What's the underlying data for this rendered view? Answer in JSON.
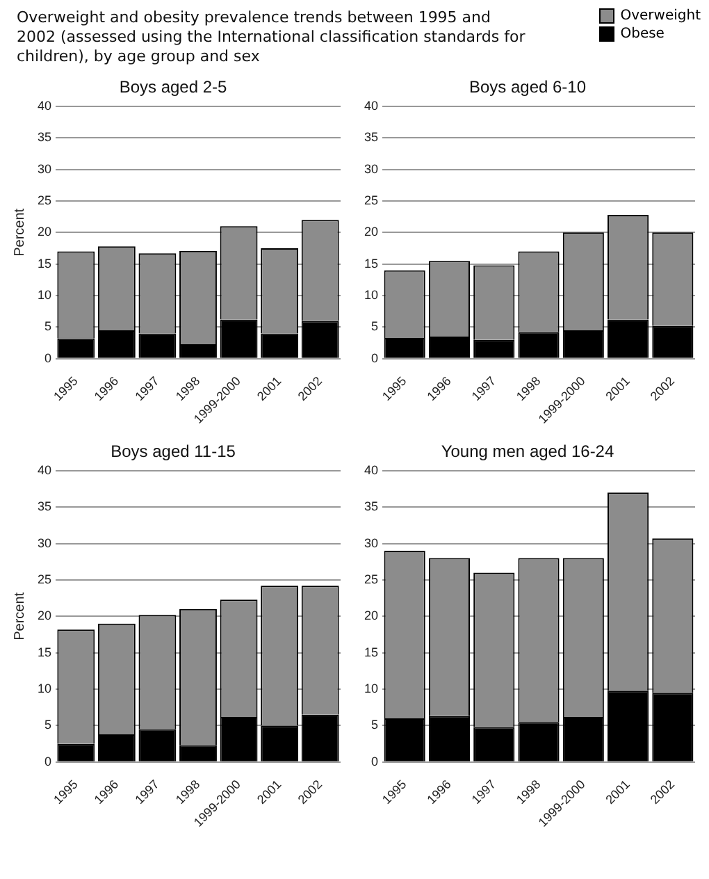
{
  "chart_data": [
    {
      "type": "bar",
      "title": "Boys aged 2-5",
      "ylabel": "Percent",
      "annotations": [
        "Overweight and obesity prevalence trends between 1995 and 2002 (assessed using the International classification standards for children), by age group and sex"
      ],
      "categories": [
        "1995",
        "1996",
        "1997",
        "1998",
        "1999-2000",
        "2001",
        "2002"
      ],
      "stacked": true,
      "legend": "top right",
      "grid": "y",
      "ylim": [
        0,
        40
      ],
      "yticks": [
        0,
        5,
        10,
        15,
        20,
        25,
        30,
        35,
        40
      ],
      "series": [
        {
          "name": "Obese",
          "color": "#000000",
          "values": [
            3.2,
            4.5,
            4,
            2.3,
            6.2,
            4,
            6
          ]
        },
        {
          "name": "Overweight",
          "color": "#8c8c8c",
          "values": [
            13.8,
            13.3,
            12.7,
            14.8,
            14.8,
            13.5,
            16
          ]
        }
      ]
    },
    {
      "type": "bar",
      "title": "Boys aged 6-10",
      "categories": [
        "1995",
        "1996",
        "1997",
        "1998",
        "1999-2000",
        "2001",
        "2002"
      ],
      "stacked": true,
      "grid": "y",
      "ylim": [
        0,
        40
      ],
      "yticks": [
        0,
        5,
        10,
        15,
        20,
        25,
        30,
        35,
        40
      ],
      "series": [
        {
          "color": "#000000",
          "values": [
            3.3,
            3.5,
            3,
            4.2,
            4.5,
            6.2,
            5.2
          ]
        },
        {
          "color": "#8c8c8c",
          "values": [
            10.7,
            12,
            11.8,
            12.8,
            15.5,
            16.6,
            14.8
          ]
        }
      ]
    },
    {
      "type": "bar",
      "title": "Boys aged 11-15",
      "ylabel": "Percent",
      "categories": [
        "1995",
        "1996",
        "1997",
        "1998",
        "1999-2000",
        "2001",
        "2002"
      ],
      "stacked": true,
      "grid": "y",
      "ylim": [
        0,
        40
      ],
      "yticks": [
        0,
        5,
        10,
        15,
        20,
        25,
        30,
        35,
        40
      ],
      "series": [
        {
          "color": "#000000",
          "values": [
            2.5,
            3.8,
            4.5,
            2.3,
            6.2,
            5,
            6.5
          ]
        },
        {
          "color": "#8c8c8c",
          "values": [
            15.7,
            15.2,
            15.7,
            18.7,
            16.1,
            19.2,
            17.7
          ]
        }
      ]
    },
    {
      "type": "bar",
      "title": "Young men aged 16-24",
      "categories": [
        "1995",
        "1996",
        "1997",
        "1998",
        "1999-2000",
        "2001",
        "2002"
      ],
      "stacked": true,
      "grid": "y",
      "ylim": [
        0,
        40
      ],
      "yticks": [
        0,
        5,
        10,
        15,
        20,
        25,
        30,
        35,
        40
      ],
      "series": [
        {
          "color": "#000000",
          "values": [
            6,
            6.3,
            4.8,
            5.5,
            6.2,
            9.8,
            9.5
          ]
        },
        {
          "color": "#8c8c8c",
          "values": [
            23,
            21.7,
            21.2,
            22.5,
            21.8,
            27.2,
            21.2
          ]
        }
      ]
    }
  ]
}
